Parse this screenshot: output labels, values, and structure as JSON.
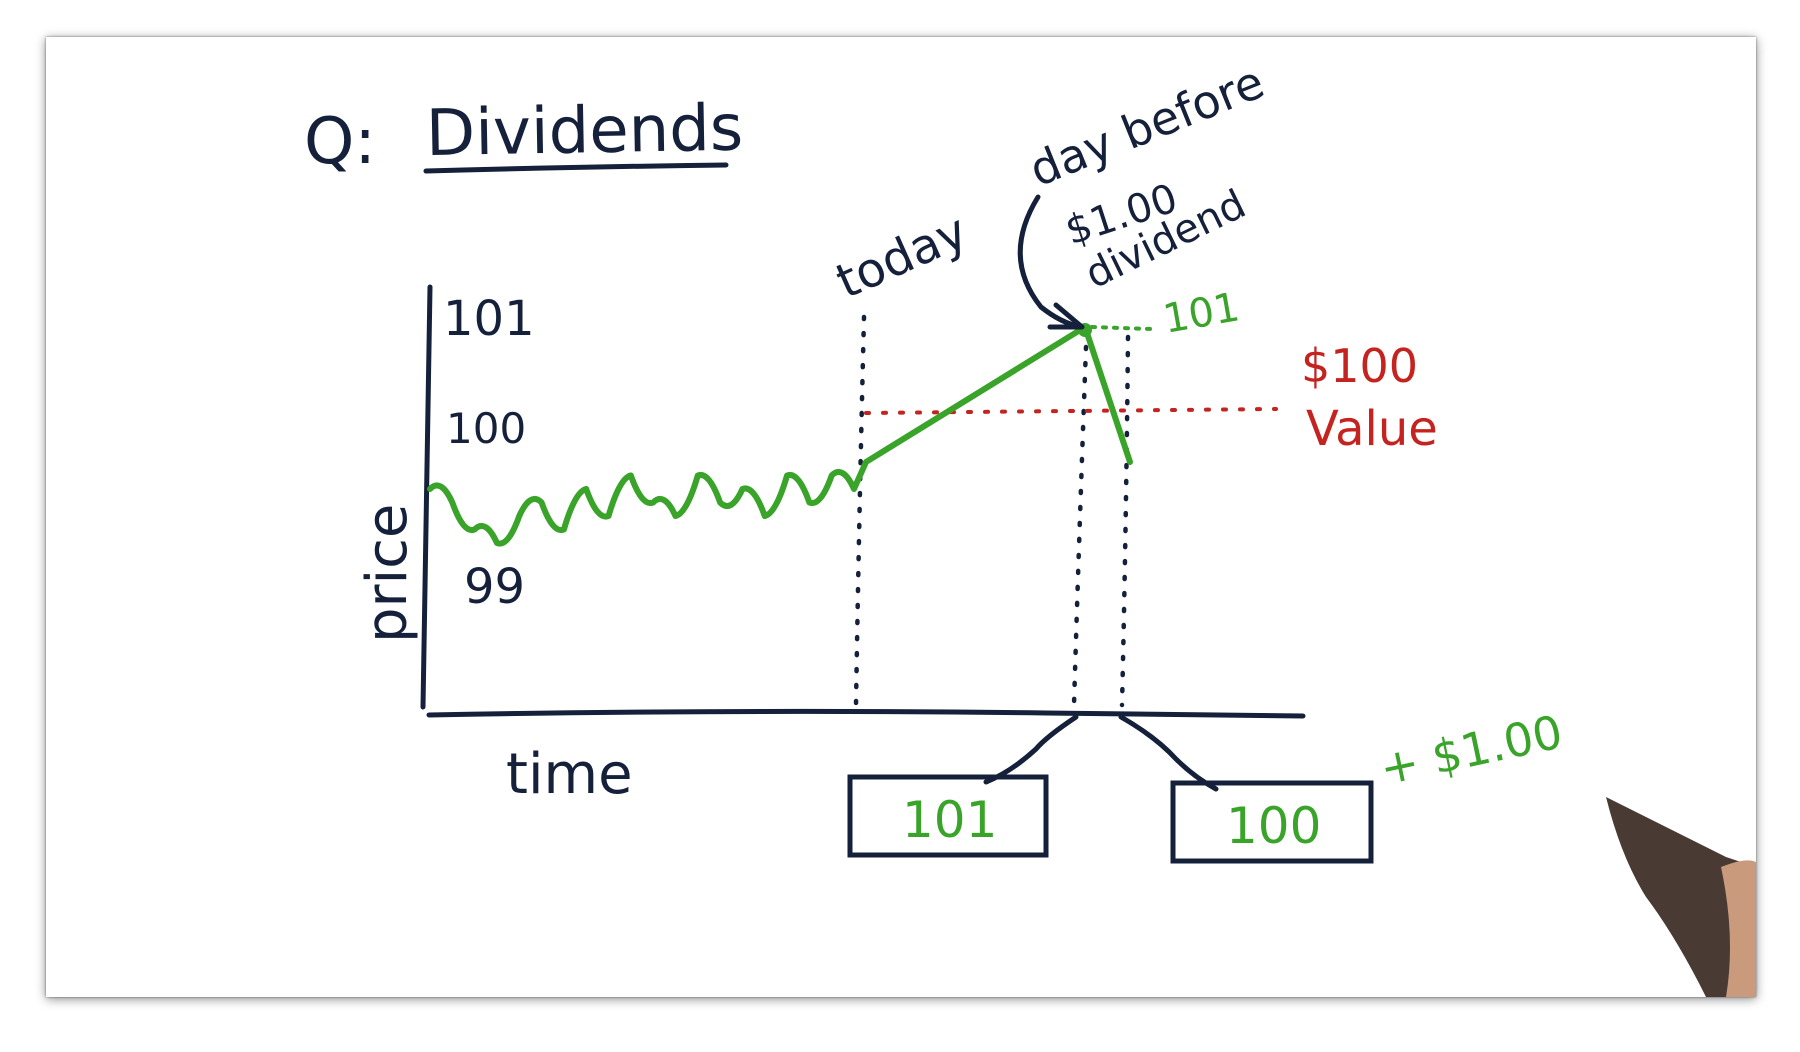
{
  "title": {
    "prefix": "Q:",
    "text": "Dividends"
  },
  "axes": {
    "y_label": "price",
    "x_label": "time"
  },
  "y_ticks": [
    "101",
    "100",
    "99"
  ],
  "annotations": {
    "today": "today",
    "day_before": "day before",
    "dividend_amount": "$1.00",
    "dividend_word": "dividend",
    "after_price": "101",
    "value_amount": "$100",
    "value_word": "Value",
    "plus_dividend": "+ $1.00"
  },
  "boxes": {
    "left": "101",
    "right": "100"
  },
  "colors": {
    "ink": "#15203b",
    "green": "#3aa32a",
    "red": "#c4231f"
  },
  "chart_data": {
    "type": "line",
    "xlabel": "time",
    "ylabel": "price",
    "ylim": [
      99,
      101
    ],
    "y_ticks": [
      99,
      100,
      101
    ],
    "series": [
      {
        "name": "",
        "values": [
          99.8,
          99.7,
          99.5,
          99.4,
          99.6,
          99.7,
          99.5,
          99.8,
          99.6,
          99.9,
          99.7,
          99.6,
          99.9,
          99.7,
          99.8,
          99.6,
          99.9,
          99.7,
          99.9,
          99.8,
          100.0,
          101.0,
          100.0
        ]
      }
    ],
    "reference_lines": [
      {
        "label": "$100 Value",
        "y": 100
      }
    ],
    "event_markers": [
      "today",
      "day before",
      "dividend"
    ]
  }
}
